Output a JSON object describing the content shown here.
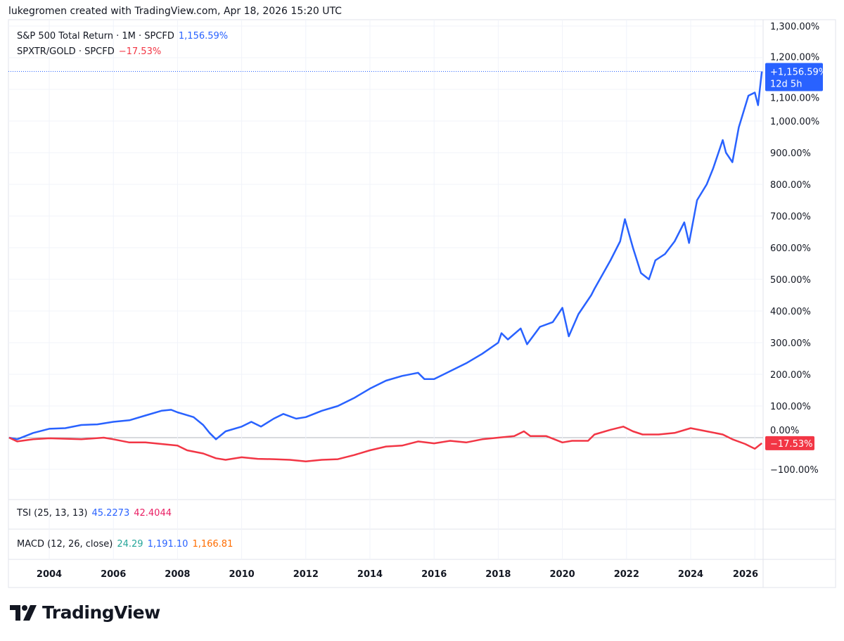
{
  "header": {
    "text": "lukegromen created with TradingView.com, Apr 18, 2026 15:20 UTC"
  },
  "legend": {
    "series1_label": "S&P 500 Total Return · 1M · SPCFD",
    "series1_value": "1,156.59%",
    "series2_label": "SPXTR/GOLD · SPCFD",
    "series2_value": "−17.53%"
  },
  "badges": {
    "series1_value": "+1,156.59%",
    "series1_countdown": "12d 5h",
    "series2_value": "−17.53%"
  },
  "indicators": {
    "tsi": {
      "label": "TSI (25, 13, 13)",
      "v1": "45.2273",
      "v2": "42.4044"
    },
    "macd": {
      "label": "MACD (12, 26, close)",
      "v1": "24.29",
      "v2": "1,191.10",
      "v3": "1,166.81"
    }
  },
  "logo": {
    "text": "TradingView"
  },
  "colors": {
    "series1": "#2962ff",
    "series2": "#f23645",
    "tsi1": "#2962ff",
    "tsi2": "#e91e63",
    "macd1": "#26a69a",
    "macd2": "#2962ff",
    "macd3": "#ff6d00",
    "grid": "#f0f3fa"
  },
  "chart_data": {
    "type": "line",
    "title": "",
    "xlabel": "",
    "ylabel": "",
    "x_ticks": [
      "2004",
      "2006",
      "2008",
      "2010",
      "2012",
      "2014",
      "2016",
      "2018",
      "2020",
      "2022",
      "2024",
      "2026"
    ],
    "y_ticks": [
      "1,300.00%",
      "1,200.00%",
      "1,100.00%",
      "1,000.00%",
      "900.00%",
      "800.00%",
      "700.00%",
      "600.00%",
      "500.00%",
      "400.00%",
      "300.00%",
      "200.00%",
      "100.00%",
      "0.00%",
      "−100.00%"
    ],
    "xlim": [
      2002.75,
      2026.4
    ],
    "ylim": [
      -190,
      1320
    ],
    "grid": true,
    "legend_placement": "top-left",
    "series": [
      {
        "name": "S&P 500 Total Return · 1M · SPCFD",
        "color": "#2962ff",
        "points": [
          [
            2002.75,
            0
          ],
          [
            2003.0,
            -5
          ],
          [
            2003.5,
            15
          ],
          [
            2004.0,
            28
          ],
          [
            2004.5,
            30
          ],
          [
            2005.0,
            40
          ],
          [
            2005.5,
            42
          ],
          [
            2006.0,
            50
          ],
          [
            2006.5,
            55
          ],
          [
            2007.0,
            70
          ],
          [
            2007.5,
            85
          ],
          [
            2007.8,
            88
          ],
          [
            2008.0,
            80
          ],
          [
            2008.5,
            65
          ],
          [
            2008.8,
            40
          ],
          [
            2009.0,
            15
          ],
          [
            2009.2,
            -5
          ],
          [
            2009.5,
            20
          ],
          [
            2010.0,
            35
          ],
          [
            2010.3,
            50
          ],
          [
            2010.6,
            35
          ],
          [
            2011.0,
            60
          ],
          [
            2011.3,
            75
          ],
          [
            2011.7,
            60
          ],
          [
            2012.0,
            65
          ],
          [
            2012.5,
            85
          ],
          [
            2013.0,
            100
          ],
          [
            2013.5,
            125
          ],
          [
            2014.0,
            155
          ],
          [
            2014.5,
            180
          ],
          [
            2015.0,
            195
          ],
          [
            2015.5,
            205
          ],
          [
            2015.7,
            185
          ],
          [
            2016.0,
            185
          ],
          [
            2016.5,
            210
          ],
          [
            2017.0,
            235
          ],
          [
            2017.5,
            265
          ],
          [
            2018.0,
            300
          ],
          [
            2018.1,
            330
          ],
          [
            2018.3,
            310
          ],
          [
            2018.7,
            345
          ],
          [
            2018.9,
            295
          ],
          [
            2019.3,
            350
          ],
          [
            2019.7,
            365
          ],
          [
            2020.0,
            410
          ],
          [
            2020.2,
            320
          ],
          [
            2020.5,
            390
          ],
          [
            2020.9,
            450
          ],
          [
            2021.0,
            470
          ],
          [
            2021.5,
            560
          ],
          [
            2021.8,
            620
          ],
          [
            2021.95,
            690
          ],
          [
            2022.2,
            600
          ],
          [
            2022.45,
            520
          ],
          [
            2022.7,
            500
          ],
          [
            2022.9,
            560
          ],
          [
            2023.2,
            580
          ],
          [
            2023.5,
            620
          ],
          [
            2023.8,
            680
          ],
          [
            2023.95,
            615
          ],
          [
            2024.2,
            750
          ],
          [
            2024.5,
            800
          ],
          [
            2024.7,
            850
          ],
          [
            2025.0,
            940
          ],
          [
            2025.1,
            900
          ],
          [
            2025.3,
            870
          ],
          [
            2025.5,
            980
          ],
          [
            2025.8,
            1080
          ],
          [
            2026.0,
            1090
          ],
          [
            2026.1,
            1050
          ],
          [
            2026.22,
            1156.59
          ]
        ]
      },
      {
        "name": "SPXTR/GOLD · SPCFD",
        "color": "#f23645",
        "points": [
          [
            2002.75,
            0
          ],
          [
            2003.0,
            -12
          ],
          [
            2003.5,
            -5
          ],
          [
            2004.0,
            -2
          ],
          [
            2005.0,
            -5
          ],
          [
            2005.7,
            0
          ],
          [
            2006.0,
            -5
          ],
          [
            2006.5,
            -15
          ],
          [
            2007.0,
            -15
          ],
          [
            2007.5,
            -20
          ],
          [
            2008.0,
            -25
          ],
          [
            2008.3,
            -40
          ],
          [
            2008.8,
            -50
          ],
          [
            2009.2,
            -65
          ],
          [
            2009.5,
            -70
          ],
          [
            2010.0,
            -62
          ],
          [
            2010.5,
            -67
          ],
          [
            2011.0,
            -68
          ],
          [
            2011.5,
            -70
          ],
          [
            2012.0,
            -75
          ],
          [
            2012.5,
            -70
          ],
          [
            2013.0,
            -68
          ],
          [
            2013.5,
            -55
          ],
          [
            2014.0,
            -40
          ],
          [
            2014.5,
            -28
          ],
          [
            2015.0,
            -25
          ],
          [
            2015.5,
            -12
          ],
          [
            2016.0,
            -18
          ],
          [
            2016.5,
            -10
          ],
          [
            2017.0,
            -15
          ],
          [
            2017.5,
            -5
          ],
          [
            2018.0,
            0
          ],
          [
            2018.5,
            5
          ],
          [
            2018.8,
            20
          ],
          [
            2019.0,
            5
          ],
          [
            2019.5,
            5
          ],
          [
            2020.0,
            -15
          ],
          [
            2020.3,
            -10
          ],
          [
            2020.8,
            -10
          ],
          [
            2021.0,
            10
          ],
          [
            2021.5,
            25
          ],
          [
            2021.9,
            35
          ],
          [
            2022.2,
            20
          ],
          [
            2022.5,
            10
          ],
          [
            2023.0,
            10
          ],
          [
            2023.5,
            15
          ],
          [
            2024.0,
            30
          ],
          [
            2024.5,
            20
          ],
          [
            2025.0,
            10
          ],
          [
            2025.3,
            -5
          ],
          [
            2025.7,
            -20
          ],
          [
            2026.0,
            -35
          ],
          [
            2026.22,
            -17.53
          ]
        ]
      }
    ]
  }
}
